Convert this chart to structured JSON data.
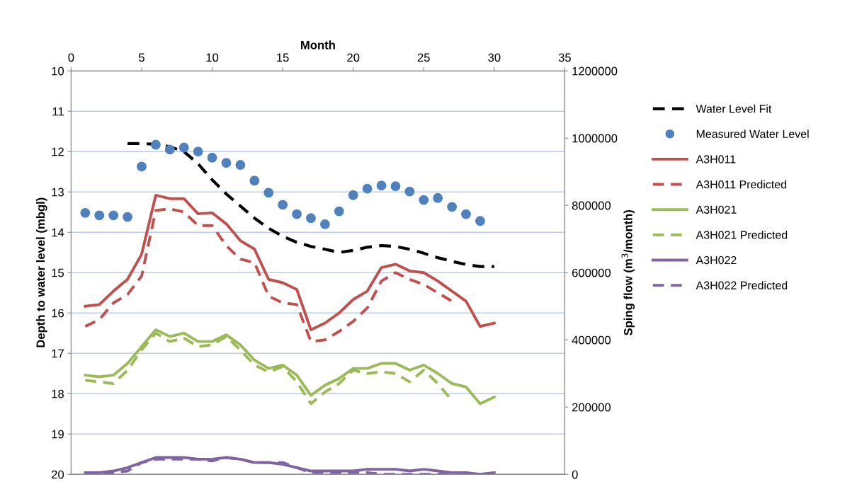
{
  "chart_data": {
    "type": "line",
    "xlabel": "Month",
    "ylabel": "Depth to water level (mbgl)",
    "y2label": "Sping flow (m$^{3}$/month)",
    "xlim": [
      0,
      35
    ],
    "xticks": [
      0,
      5,
      10,
      15,
      20,
      25,
      30,
      35
    ],
    "ylim": [
      20,
      10
    ],
    "yticks": [
      10,
      11,
      12,
      13,
      14,
      15,
      16,
      17,
      18,
      19,
      20
    ],
    "y2lim": [
      0,
      1200000
    ],
    "y2ticks": [
      0,
      200000,
      400000,
      600000,
      800000,
      1000000,
      1200000
    ],
    "grid": "y",
    "legend": "right",
    "series": [
      {
        "name": "Water Level Fit",
        "line_style": "dashed",
        "color": "#000000",
        "x": [
          4,
          5,
          6,
          7,
          8,
          9,
          10,
          11,
          12,
          13,
          14,
          15,
          16,
          17,
          18,
          19,
          20,
          21,
          22,
          23,
          24,
          25,
          26,
          27,
          28,
          29,
          30
        ],
        "values": [
          11.8,
          11.8,
          11.82,
          11.88,
          12.0,
          12.3,
          12.7,
          13.05,
          13.35,
          13.65,
          13.9,
          14.1,
          14.25,
          14.35,
          14.42,
          14.5,
          14.45,
          14.37,
          14.33,
          14.35,
          14.42,
          14.52,
          14.63,
          14.72,
          14.8,
          14.85,
          14.85
        ]
      },
      {
        "name": "Measured Water Level",
        "type": "scatter",
        "marker": "circle",
        "color": "#4f81bd",
        "x": [
          1,
          2,
          3,
          4,
          5,
          6,
          7,
          8,
          9,
          10,
          11,
          12,
          13,
          14,
          15,
          16,
          17,
          18,
          19,
          20,
          21,
          22,
          23,
          24,
          25,
          26,
          27,
          28,
          29
        ],
        "values": [
          13.52,
          13.58,
          13.58,
          13.62,
          12.37,
          11.83,
          11.95,
          11.9,
          12.0,
          12.15,
          12.28,
          12.33,
          12.72,
          13.02,
          13.32,
          13.55,
          13.65,
          13.8,
          13.48,
          13.08,
          12.92,
          12.84,
          12.86,
          12.99,
          13.2,
          13.15,
          13.37,
          13.55,
          13.72
        ]
      },
      {
        "name": "A3H011",
        "line_style": "solid",
        "axis": "y2",
        "color": "#c0504d",
        "x": [
          1,
          2,
          3,
          4,
          5,
          6,
          7,
          8,
          9,
          10,
          11,
          12,
          13,
          14,
          15,
          16,
          17,
          18,
          19,
          20,
          21,
          22,
          23,
          24,
          25,
          26,
          27,
          28,
          29,
          30
        ],
        "values": [
          500000,
          505000,
          545000,
          580000,
          655000,
          830000,
          820000,
          820000,
          775000,
          778000,
          745000,
          695000,
          670000,
          580000,
          570000,
          550000,
          430000,
          450000,
          480000,
          520000,
          545000,
          615000,
          625000,
          605000,
          600000,
          575000,
          545000,
          515000,
          440000,
          450000
        ]
      },
      {
        "name": "A3H011 Predicted",
        "line_style": "dashed",
        "axis": "y2",
        "color": "#c0504d",
        "x": [
          1,
          2,
          3,
          4,
          5,
          6,
          7,
          8,
          9,
          10,
          11,
          12,
          13,
          14,
          15,
          16,
          17,
          18,
          19,
          20,
          21,
          22,
          23,
          24,
          25,
          26,
          27
        ],
        "values": [
          440000,
          460000,
          510000,
          535000,
          590000,
          785000,
          790000,
          780000,
          740000,
          740000,
          680000,
          640000,
          630000,
          530000,
          510000,
          505000,
          395000,
          400000,
          425000,
          455000,
          495000,
          575000,
          600000,
          580000,
          565000,
          540000,
          515000
        ]
      },
      {
        "name": "A3H021",
        "line_style": "solid",
        "axis": "y2",
        "color": "#9bbb59",
        "x": [
          1,
          2,
          3,
          4,
          5,
          6,
          7,
          8,
          9,
          10,
          11,
          12,
          13,
          14,
          15,
          16,
          17,
          18,
          19,
          20,
          21,
          22,
          23,
          24,
          25,
          26,
          27,
          28,
          29,
          30
        ],
        "values": [
          295000,
          290000,
          295000,
          330000,
          380000,
          430000,
          410000,
          420000,
          395000,
          395000,
          415000,
          385000,
          340000,
          315000,
          325000,
          295000,
          235000,
          265000,
          285000,
          315000,
          315000,
          330000,
          330000,
          310000,
          325000,
          300000,
          270000,
          260000,
          210000,
          230000
        ]
      },
      {
        "name": "A3H021 Predicted",
        "line_style": "dashed",
        "axis": "y2",
        "color": "#9bbb59",
        "x": [
          1,
          2,
          3,
          4,
          5,
          6,
          7,
          8,
          9,
          10,
          11,
          12,
          13,
          14,
          15,
          16,
          17,
          18,
          19,
          20,
          21,
          22,
          23,
          24,
          25,
          26,
          27
        ],
        "values": [
          280000,
          275000,
          270000,
          310000,
          370000,
          420000,
          395000,
          405000,
          380000,
          385000,
          410000,
          370000,
          325000,
          305000,
          320000,
          275000,
          210000,
          245000,
          270000,
          310000,
          300000,
          305000,
          300000,
          275000,
          310000,
          270000,
          220000
        ]
      },
      {
        "name": "A3H022",
        "line_style": "solid",
        "axis": "y2",
        "color": "#8064a2",
        "x": [
          1,
          2,
          3,
          4,
          5,
          6,
          7,
          8,
          9,
          10,
          11,
          12,
          13,
          14,
          15,
          16,
          17,
          18,
          19,
          20,
          21,
          22,
          23,
          24,
          25,
          26,
          27,
          28,
          29,
          30
        ],
        "values": [
          5000,
          5000,
          10000,
          20000,
          35000,
          50000,
          50000,
          50000,
          45000,
          45000,
          50000,
          45000,
          35000,
          35000,
          30000,
          20000,
          10000,
          10000,
          10000,
          10000,
          15000,
          15000,
          15000,
          10000,
          15000,
          10000,
          5000,
          5000,
          0,
          5000
        ]
      },
      {
        "name": "A3H022 Predicted",
        "line_style": "dashed",
        "axis": "y2",
        "color": "#8064a2",
        "x": [
          1,
          2,
          3,
          4,
          5,
          6,
          7,
          8,
          9,
          10,
          11,
          12,
          13,
          14,
          15,
          16,
          17,
          18,
          19,
          20,
          21,
          22,
          23,
          24,
          25,
          26,
          27
        ],
        "values": [
          0,
          0,
          5000,
          10000,
          35000,
          45000,
          45000,
          45000,
          45000,
          40000,
          50000,
          45000,
          35000,
          35000,
          35000,
          20000,
          5000,
          5000,
          5000,
          5000,
          5000,
          0,
          0,
          0,
          0,
          0,
          5000
        ]
      }
    ]
  }
}
